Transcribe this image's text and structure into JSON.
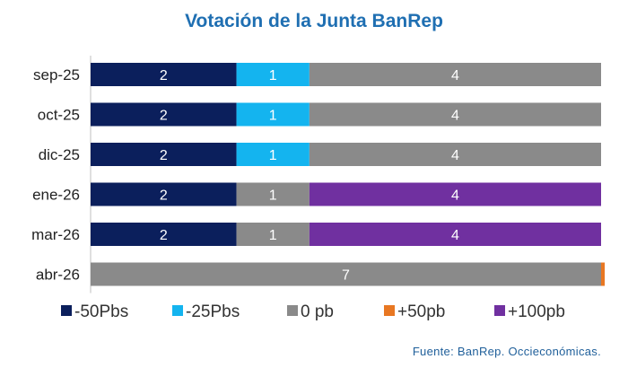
{
  "chart_data": {
    "type": "bar",
    "orientation": "horizontal",
    "stacked": true,
    "title": "Votación de la Junta BanRep",
    "categories": [
      "sep-25",
      "oct-25",
      "dic-25",
      "ene-26",
      "mar-26",
      "abr-26"
    ],
    "series": [
      {
        "name": "-50Pbs",
        "color": "#0b1f5c",
        "values": [
          2,
          2,
          2,
          2,
          2,
          0
        ]
      },
      {
        "name": "-25Pbs",
        "color": "#14b4ef",
        "values": [
          1,
          1,
          1,
          0,
          0,
          0
        ]
      },
      {
        "name": "0 pb",
        "color": "#8a8a8a",
        "values": [
          4,
          4,
          4,
          1,
          1,
          7
        ]
      },
      {
        "name": "+50pb",
        "color": "#e87722",
        "values": [
          0,
          0,
          0,
          0,
          0,
          0.05
        ]
      },
      {
        "name": "+100pb",
        "color": "#7030a0",
        "values": [
          0,
          0,
          0,
          4,
          4,
          0
        ]
      }
    ],
    "data_labels": [
      [
        "2",
        "1",
        "4",
        "",
        ""
      ],
      [
        "2",
        "1",
        "4",
        "",
        ""
      ],
      [
        "2",
        "1",
        "4",
        "",
        ""
      ],
      [
        "2",
        "",
        "1",
        "",
        "4"
      ],
      [
        "2",
        "",
        "1",
        "",
        "4"
      ],
      [
        "",
        "",
        "7",
        "",
        ""
      ]
    ],
    "xlim": [
      0,
      7
    ],
    "grid": false,
    "legend_position": "bottom"
  },
  "source": "Fuente: BanRep. Occieconómicas."
}
